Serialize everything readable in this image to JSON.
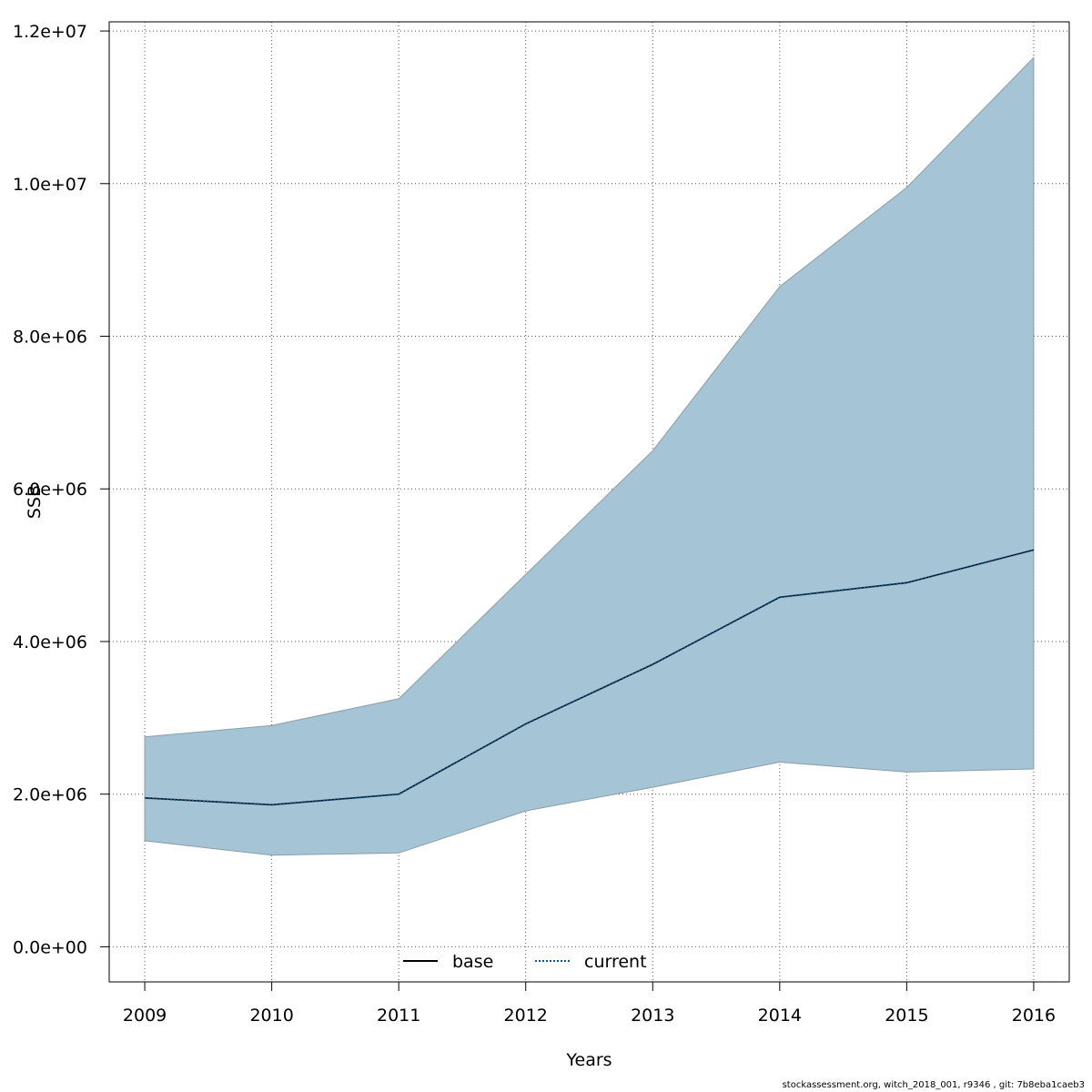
{
  "chart_data": {
    "type": "line",
    "xlabel": "Years",
    "ylabel": "SSB",
    "x": [
      2009,
      2010,
      2011,
      2012,
      2013,
      2014,
      2015,
      2016
    ],
    "x_tick_labels": [
      "2009",
      "2010",
      "2011",
      "2012",
      "2013",
      "2014",
      "2015",
      "2016"
    ],
    "y_tick_values": [
      0,
      2000000,
      4000000,
      6000000,
      8000000,
      10000000,
      12000000
    ],
    "y_tick_labels": [
      "0.0e+00",
      "2.0e+06",
      "4.0e+06",
      "6.0e+06",
      "8.0e+06",
      "1.0e+07",
      "1.2e+07"
    ],
    "xlim": [
      2008.72,
      2016.28
    ],
    "ylim": [
      -460000,
      12120000
    ],
    "grid": true,
    "legend_placement": "bottom-center",
    "band": {
      "upper": [
        2750000,
        2900000,
        3250000,
        4880000,
        6500000,
        8650000,
        9950000,
        11650000
      ],
      "lower": [
        1390000,
        1200000,
        1230000,
        1780000,
        2090000,
        2420000,
        2290000,
        2330000
      ],
      "color": "#a5c4d5"
    },
    "series": [
      {
        "name": "base",
        "values": [
          1950000,
          1860000,
          2000000,
          2920000,
          3700000,
          4580000,
          4770000,
          5200000
        ],
        "color": "#000000",
        "style": "solid"
      },
      {
        "name": "current",
        "values": [
          1950000,
          1860000,
          2000000,
          2920000,
          3700000,
          4580000,
          4770000,
          5200000
        ],
        "color": "#0a5a8c",
        "style": "dotted"
      }
    ]
  },
  "footer": "stockassessment.org, witch_2018_001, r9346 , git: 7b8eba1caeb3"
}
